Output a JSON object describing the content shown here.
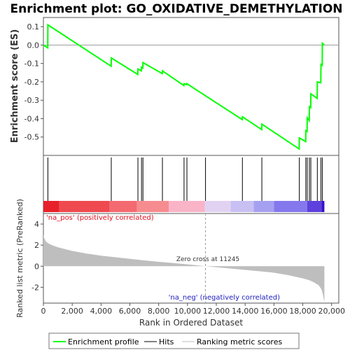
{
  "chart_data": [
    {
      "type": "line",
      "title": "Enrichment plot: GO_OXIDATIVE_DEMETHYLATION",
      "xlabel": "",
      "ylabel": "Enrichment score (ES)",
      "xlim": [
        0,
        20500
      ],
      "ylim": [
        -0.6,
        0.15
      ],
      "yticks": [
        0.1,
        0.0,
        -0.1,
        -0.2,
        -0.3,
        -0.4,
        -0.5
      ],
      "ytick_labels": [
        "0.1",
        "0.0",
        "-0.1",
        "-0.2",
        "-0.3",
        "-0.4",
        "-0.5"
      ],
      "series": [
        {
          "name": "Enrichment profile",
          "color": "#00ff00",
          "x": [
            0,
            300,
            310,
            4700,
            4710,
            6550,
            6560,
            6800,
            6810,
            6900,
            6910,
            8250,
            8260,
            9750,
            9760,
            9950,
            9960,
            13800,
            13810,
            15150,
            15160,
            17750,
            17760,
            18200,
            18210,
            18300,
            18310,
            18450,
            18460,
            18550,
            18560,
            19000,
            19010,
            19250,
            19260,
            19350,
            19360,
            19500
          ],
          "y": [
            0.0,
            -0.015,
            0.11,
            -0.115,
            -0.07,
            -0.16,
            -0.13,
            -0.14,
            -0.12,
            -0.125,
            -0.095,
            -0.155,
            -0.14,
            -0.22,
            -0.21,
            -0.215,
            -0.21,
            -0.405,
            -0.39,
            -0.46,
            -0.43,
            -0.565,
            -0.505,
            -0.525,
            -0.465,
            -0.47,
            -0.395,
            -0.41,
            -0.335,
            -0.34,
            -0.265,
            -0.29,
            -0.2,
            -0.205,
            -0.105,
            -0.11,
            0.01,
            0.0
          ]
        }
      ]
    },
    {
      "type": "hits",
      "name": "Hits",
      "positions": [
        310,
        4710,
        6560,
        6810,
        6910,
        8260,
        9760,
        9960,
        11250,
        13810,
        15160,
        17760,
        18210,
        18310,
        18460,
        18560,
        19010,
        19260,
        19360
      ],
      "heat_colors": [
        "#e8202a",
        "#ee4a50",
        "#f36a70",
        "#f78c90",
        "#fab4c8",
        "#e2d2f2",
        "#c8c0f2",
        "#a6a0f0",
        "#8478ec",
        "#5e40dc",
        "#3a10c8"
      ]
    },
    {
      "type": "area",
      "name": "Ranking metric scores",
      "xlabel": "Rank in Ordered Dataset",
      "ylabel": "Ranked list metric (PreRanked)",
      "xlim": [
        0,
        20500
      ],
      "ylim": [
        -3.5,
        5
      ],
      "xticks": [
        0,
        2000,
        4000,
        6000,
        8000,
        10000,
        12000,
        14000,
        16000,
        18000,
        20000
      ],
      "xtick_labels": [
        "0",
        "2,000",
        "4,000",
        "6,000",
        "8,000",
        "10,000",
        "12,000",
        "14,000",
        "16,000",
        "18,000",
        "20,000"
      ],
      "yticks": [
        4,
        2,
        0,
        -2
      ],
      "ytick_labels": [
        "4",
        "2",
        "0",
        "-2"
      ],
      "x": [
        0,
        50,
        150,
        300,
        600,
        1000,
        2000,
        3000,
        4000,
        5000,
        6000,
        7000,
        8000,
        9000,
        10000,
        11245,
        12000,
        13000,
        14000,
        15000,
        16000,
        17000,
        17500,
        18000,
        18500,
        18800,
        19100,
        19300,
        19400,
        19450,
        19500
      ],
      "y": [
        3.0,
        2.7,
        2.4,
        2.2,
        2.0,
        1.8,
        1.45,
        1.2,
        1.0,
        0.85,
        0.7,
        0.55,
        0.42,
        0.3,
        0.18,
        0.0,
        -0.1,
        -0.22,
        -0.35,
        -0.48,
        -0.62,
        -0.85,
        -1.0,
        -1.15,
        -1.35,
        -1.55,
        -1.8,
        -2.2,
        -2.7,
        -3.1,
        -3.4
      ],
      "fill": "#bebebe",
      "annotations": {
        "zero_cross": "Zero cross at 11245",
        "zero_cross_rank": 11245,
        "pos_label": "'na_pos' (positively correlated)",
        "neg_label": "'na_neg' (negatively correlated)"
      }
    }
  ],
  "legend": {
    "items": [
      {
        "label": "Enrichment profile",
        "color": "#00ff00"
      },
      {
        "label": "Hits",
        "color": "#000000"
      },
      {
        "label": "Ranking metric scores",
        "color": "#bebebe"
      }
    ]
  }
}
